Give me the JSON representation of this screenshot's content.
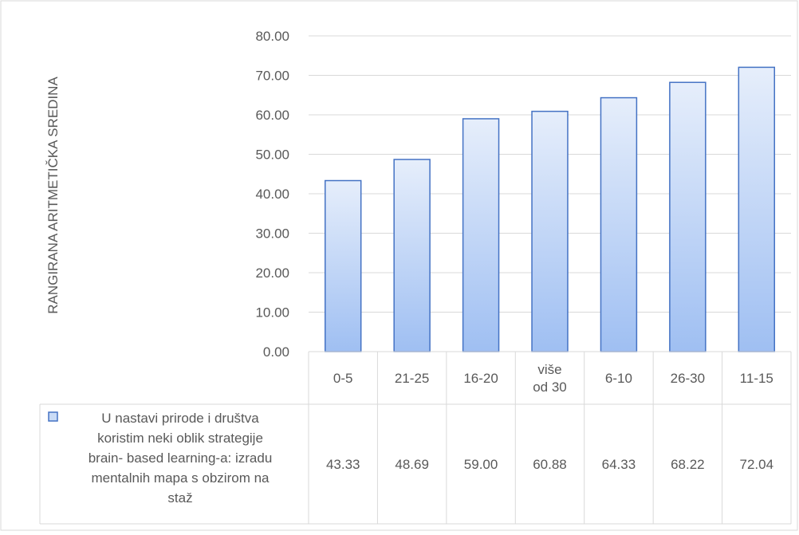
{
  "chart_data": {
    "type": "bar",
    "title": "",
    "xlabel": "",
    "ylabel": "RANGIRANA ARITMETIČKA SREDINA",
    "ylim": [
      0,
      80
    ],
    "yticks": [
      "0.00",
      "10.00",
      "20.00",
      "30.00",
      "40.00",
      "50.00",
      "60.00",
      "70.00",
      "80.00"
    ],
    "grid": true,
    "legend": "data-table",
    "categories": [
      "0-5",
      "21-25",
      "16-20",
      "više od 30",
      "6-10",
      "26-30",
      "11-15"
    ],
    "series": [
      {
        "name": "U nastavi prirode i društva koristim neki oblik strategije brain- based learning-a: izradu mentalnih mapa s obzirom na staž",
        "values": [
          43.33,
          48.69,
          59.0,
          60.88,
          64.33,
          68.22,
          72.04
        ],
        "value_labels": [
          "43.33",
          "48.69",
          "59.00",
          "60.88",
          "64.33",
          "68.22",
          "72.04"
        ],
        "color": "#4472c4"
      }
    ],
    "table_series_label_lines": [
      "U nastavi prirode i društva",
      "koristim neki oblik strategije",
      "brain- based learning-a: izradu",
      "mentalnih mapa s obzirom na",
      "staž"
    ],
    "category_label_lines": [
      [
        "0-5"
      ],
      [
        "21-25"
      ],
      [
        "16-20"
      ],
      [
        "više",
        "od 30"
      ],
      [
        "6-10"
      ],
      [
        "26-30"
      ],
      [
        "11-15"
      ]
    ]
  }
}
